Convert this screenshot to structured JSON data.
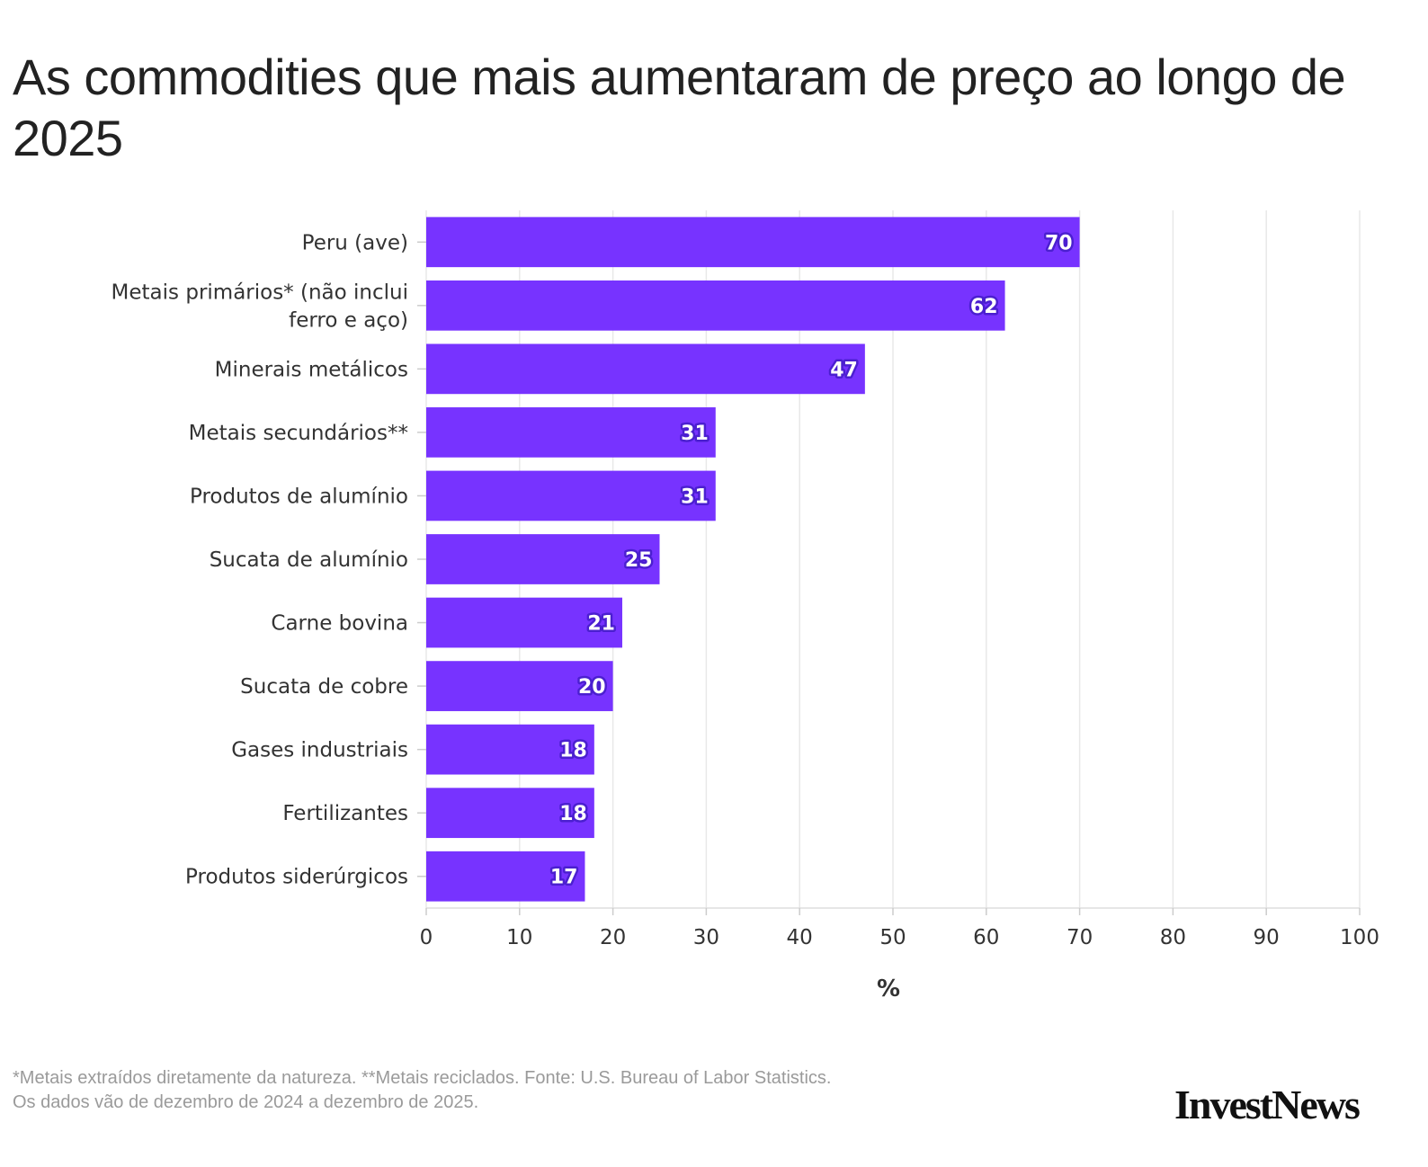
{
  "title": "As commodities que mais aumentaram de preço ao longo de 2025",
  "chart_data": {
    "type": "bar",
    "orientation": "horizontal",
    "categories": [
      "Peru (ave)",
      "Metais primários* (não inclui ferro e aço)",
      "Minerais metálicos",
      "Metais secundários**",
      "Produtos de alumínio",
      "Sucata de alumínio",
      "Carne bovina",
      "Sucata de cobre",
      "Gases industriais",
      "Fertilizantes",
      "Produtos siderúrgicos"
    ],
    "values": [
      70,
      62,
      47,
      31,
      31,
      25,
      21,
      20,
      18,
      18,
      17
    ],
    "xlabel": "%",
    "ylabel": "",
    "xlim": [
      0,
      100
    ],
    "xticks": [
      0,
      10,
      20,
      30,
      40,
      50,
      60,
      70,
      80,
      90,
      100
    ],
    "grid": true,
    "bar_color": "#7733ff",
    "label_outline_color": "#4b1fd0"
  },
  "footnote": {
    "line1": "*Metais extraídos diretamente da natureza. **Metais reciclados. Fonte: U.S. Bureau of Labor Statistics.",
    "line2": "Os dados vão de dezembro de 2024 a dezembro de 2025."
  },
  "logo": "InvestNews"
}
